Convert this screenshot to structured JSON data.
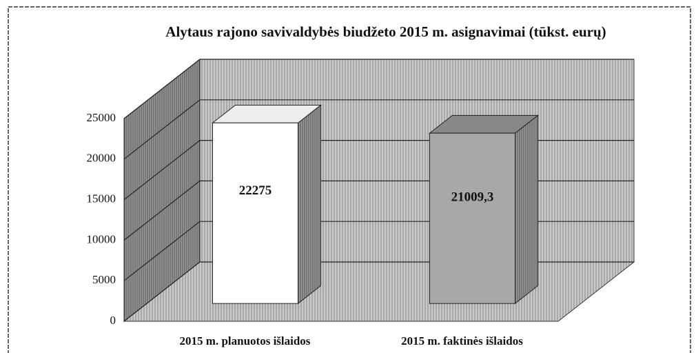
{
  "chart_data": {
    "type": "bar3d",
    "title": "Alytaus rajono savivaldybės biudžeto 2015 m. asignavimai (tūkst. eurų)",
    "categories": [
      "2015 m. planuotos išlaidos",
      "2015 m. faktinės išlaidos"
    ],
    "values": [
      22275,
      21009.3
    ],
    "value_labels": [
      "22275",
      "21009,3"
    ],
    "colors": [
      "#ffffff",
      "#a8a8a8"
    ],
    "ylim": [
      0,
      25000
    ],
    "yticks": [
      0,
      5000,
      10000,
      15000,
      20000,
      25000
    ],
    "grid": true
  }
}
